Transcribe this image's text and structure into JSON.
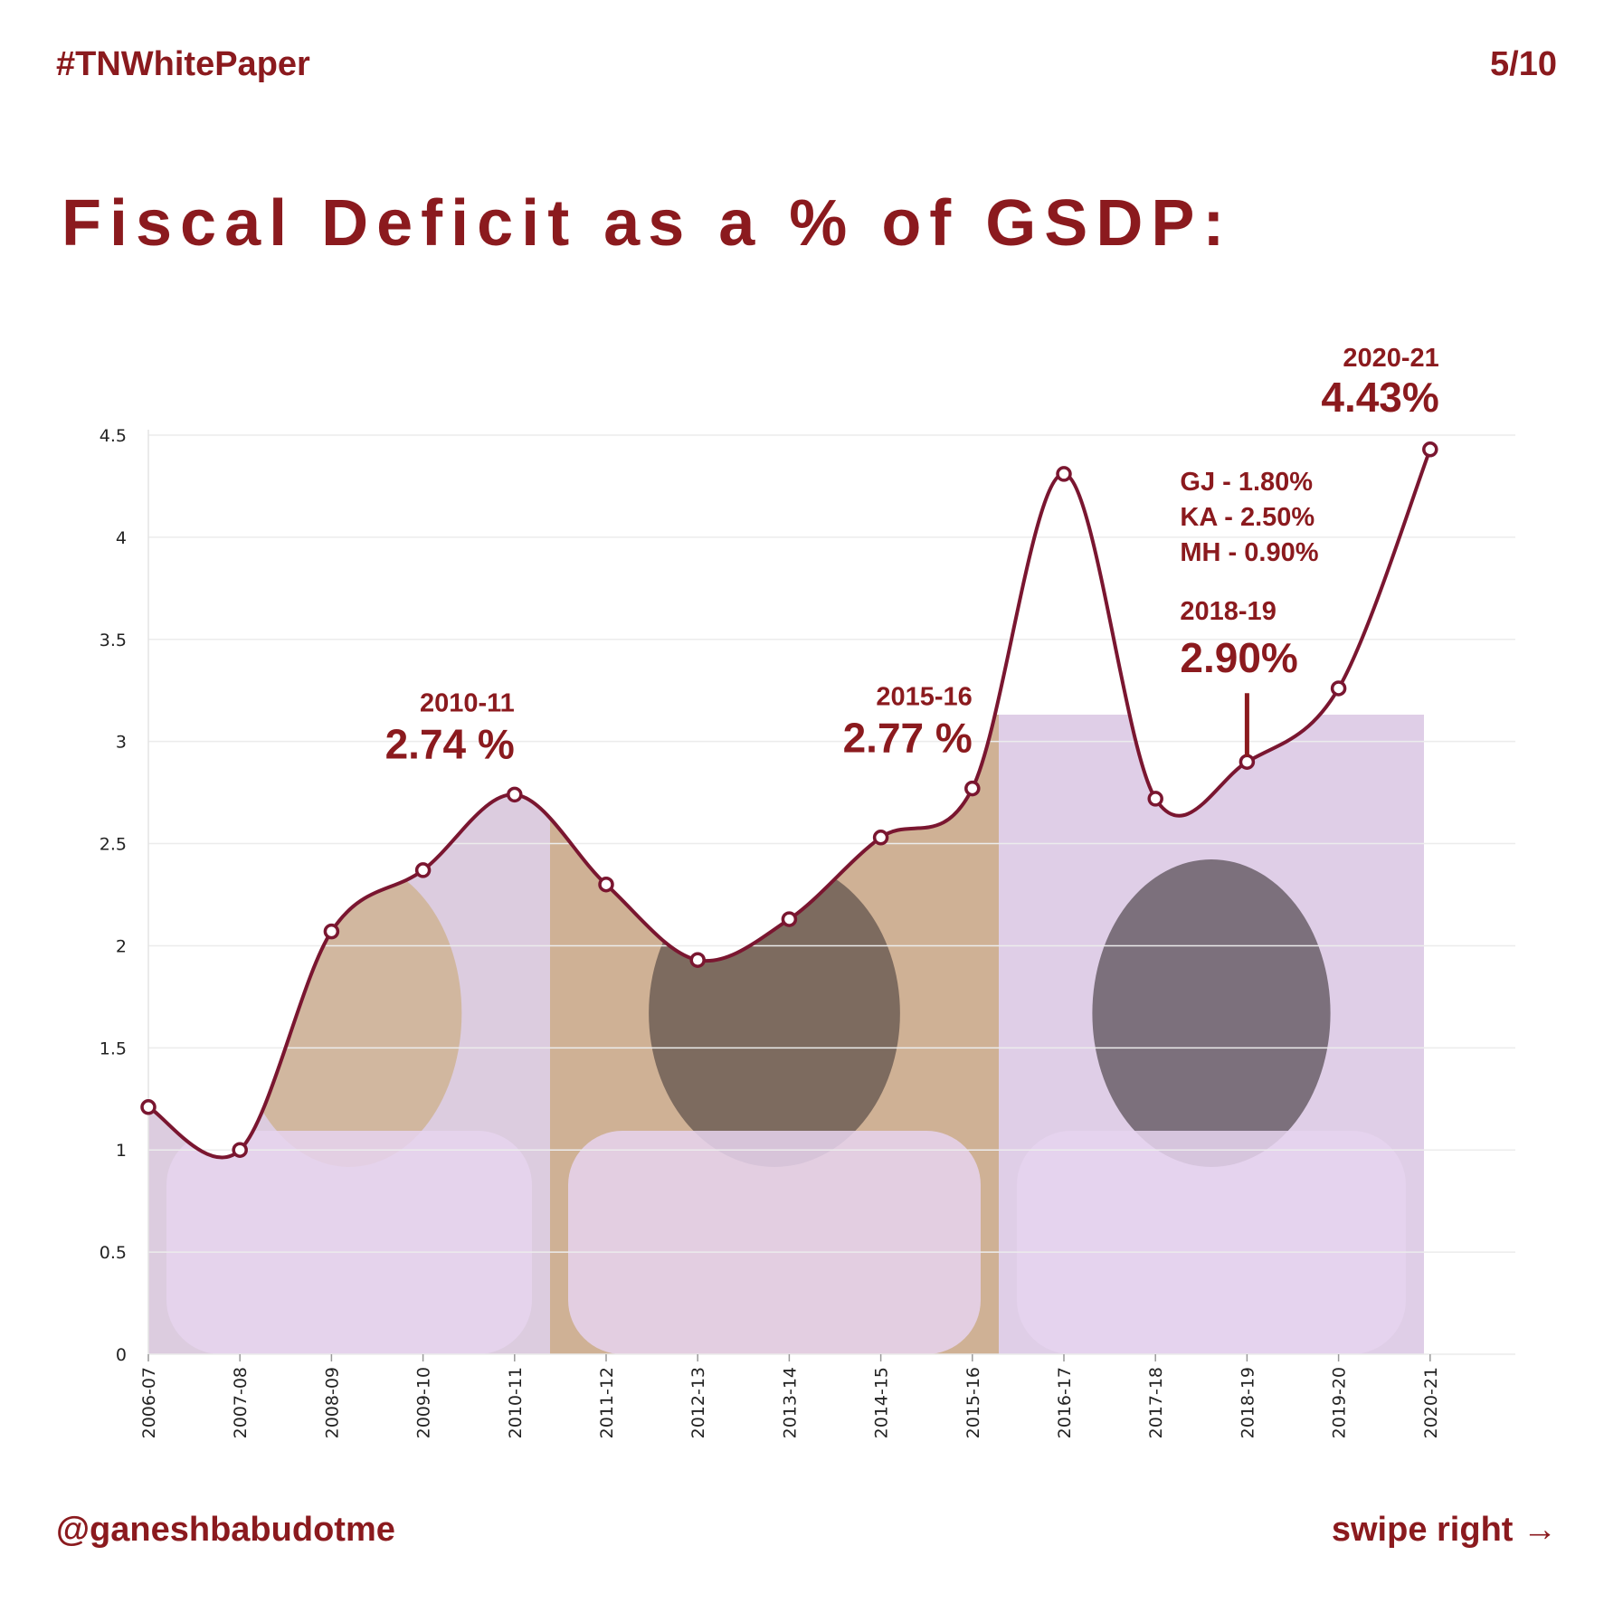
{
  "header": {
    "hashtag": "#TNWhitePaper",
    "page": "5/10"
  },
  "title": "Fiscal Deficit as a % of GSDP:",
  "footer": {
    "handle": "@ganeshbabudotme",
    "swipe": "swipe right →"
  },
  "colors": {
    "accent": "#8b1a1e",
    "line": "#7a1630",
    "photo_tint": "#e6d4ee"
  },
  "chart_data": {
    "type": "line",
    "categories": [
      "2006-07",
      "2007-08",
      "2008-09",
      "2009-10",
      "2010-11",
      "2011-12",
      "2012-13",
      "2013-14",
      "2014-15",
      "2015-16",
      "2016-17",
      "2017-18",
      "2018-19",
      "2019-20",
      "2020-21"
    ],
    "values": [
      1.21,
      1.0,
      2.07,
      2.37,
      2.74,
      2.3,
      1.93,
      2.13,
      2.53,
      2.77,
      4.31,
      2.72,
      2.9,
      3.26,
      4.43
    ],
    "yticks": [
      "0",
      "0.5",
      "1",
      "1.5",
      "2",
      "2.5",
      "3",
      "3.5",
      "4",
      "4.5"
    ],
    "ylim": [
      0,
      4.5
    ],
    "grid": true,
    "annotations": [
      {
        "category": "2010-11",
        "year": "2010-11",
        "value": "2.74 %"
      },
      {
        "category": "2015-16",
        "year": "2015-16",
        "value": "2.77 %"
      },
      {
        "category": "2018-19",
        "year": "2018-19",
        "value": "2.90%",
        "comparisons": [
          "GJ - 1.80%",
          "KA - 2.50%",
          "MH - 0.90%"
        ]
      },
      {
        "category": "2020-21",
        "year": "2020-21",
        "value": "4.43%"
      }
    ],
    "photo_panels": [
      "portrait-1",
      "portrait-2",
      "portrait-3"
    ]
  }
}
